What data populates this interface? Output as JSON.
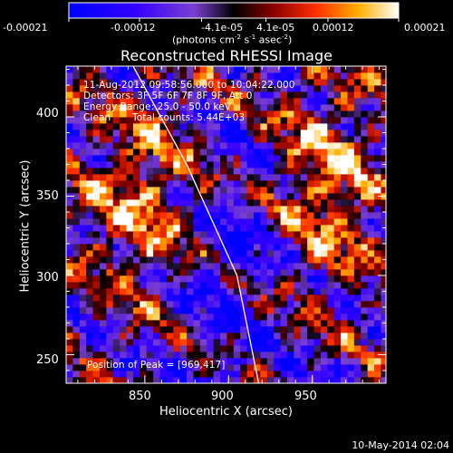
{
  "chart_data": {
    "type": "heatmap",
    "title": "Reconstructed RHESSI Image",
    "xlabel": "Heliocentric X (arcsec)",
    "ylabel": "Heliocentric Y (arcsec)",
    "xlim": [
      803,
      994
    ],
    "ylim": [
      232,
      432
    ],
    "x_ticks": [
      850,
      900,
      950
    ],
    "y_ticks": [
      250,
      300,
      350,
      400
    ],
    "colorbar": {
      "ticks": [
        "-0.00021",
        "-0.00012",
        "-4.1e-05",
        "4.1e-05",
        "0.00012",
        "0.00021"
      ],
      "tick_values": [
        -0.00021,
        -0.00012,
        -4.1e-05,
        4.1e-05,
        0.00012,
        0.00021
      ],
      "range": [
        -0.00021,
        0.00021
      ],
      "units_line1": "(photons cm",
      "units_exp1": "-2",
      "units_mid": " s",
      "units_exp2": "-1",
      "units_mid2": " asec",
      "units_exp3": "-2",
      "units_end": ")"
    },
    "annotations": {
      "time_range": "11-Aug-2012 09:58:56.000 to 10:04:22.000",
      "detectors": "Detectors: 3F 5F 6F 7F 8F 9F, Att 0",
      "energy": "Energy Range: 25.0 - 50.0 keV",
      "clean_label": "Clean",
      "total_counts": "Total counts: 5.44E+03",
      "peak": "Position of Peak = [969,417]"
    },
    "limb_curve": {
      "description_points_data_units": [
        [
          843,
          432
        ],
        [
          875,
          370
        ],
        [
          905,
          300
        ],
        [
          918,
          232
        ]
      ]
    },
    "intensity_regions": [
      {
        "name": "left bright arc",
        "x_range": [
          803,
          900
        ],
        "y_range": [
          270,
          420
        ],
        "value": 0.00017
      },
      {
        "name": "right bright complex",
        "x_range": [
          920,
          994
        ],
        "y_range": [
          280,
          430
        ],
        "value": 0.00018
      },
      {
        "name": "central negative band",
        "x_range": [
          855,
          930
        ],
        "y_range": [
          232,
          400
        ],
        "value": -0.00012
      }
    ],
    "grid": false,
    "legend": "none"
  },
  "footer": {
    "date": "10-May-2014 02:04"
  }
}
